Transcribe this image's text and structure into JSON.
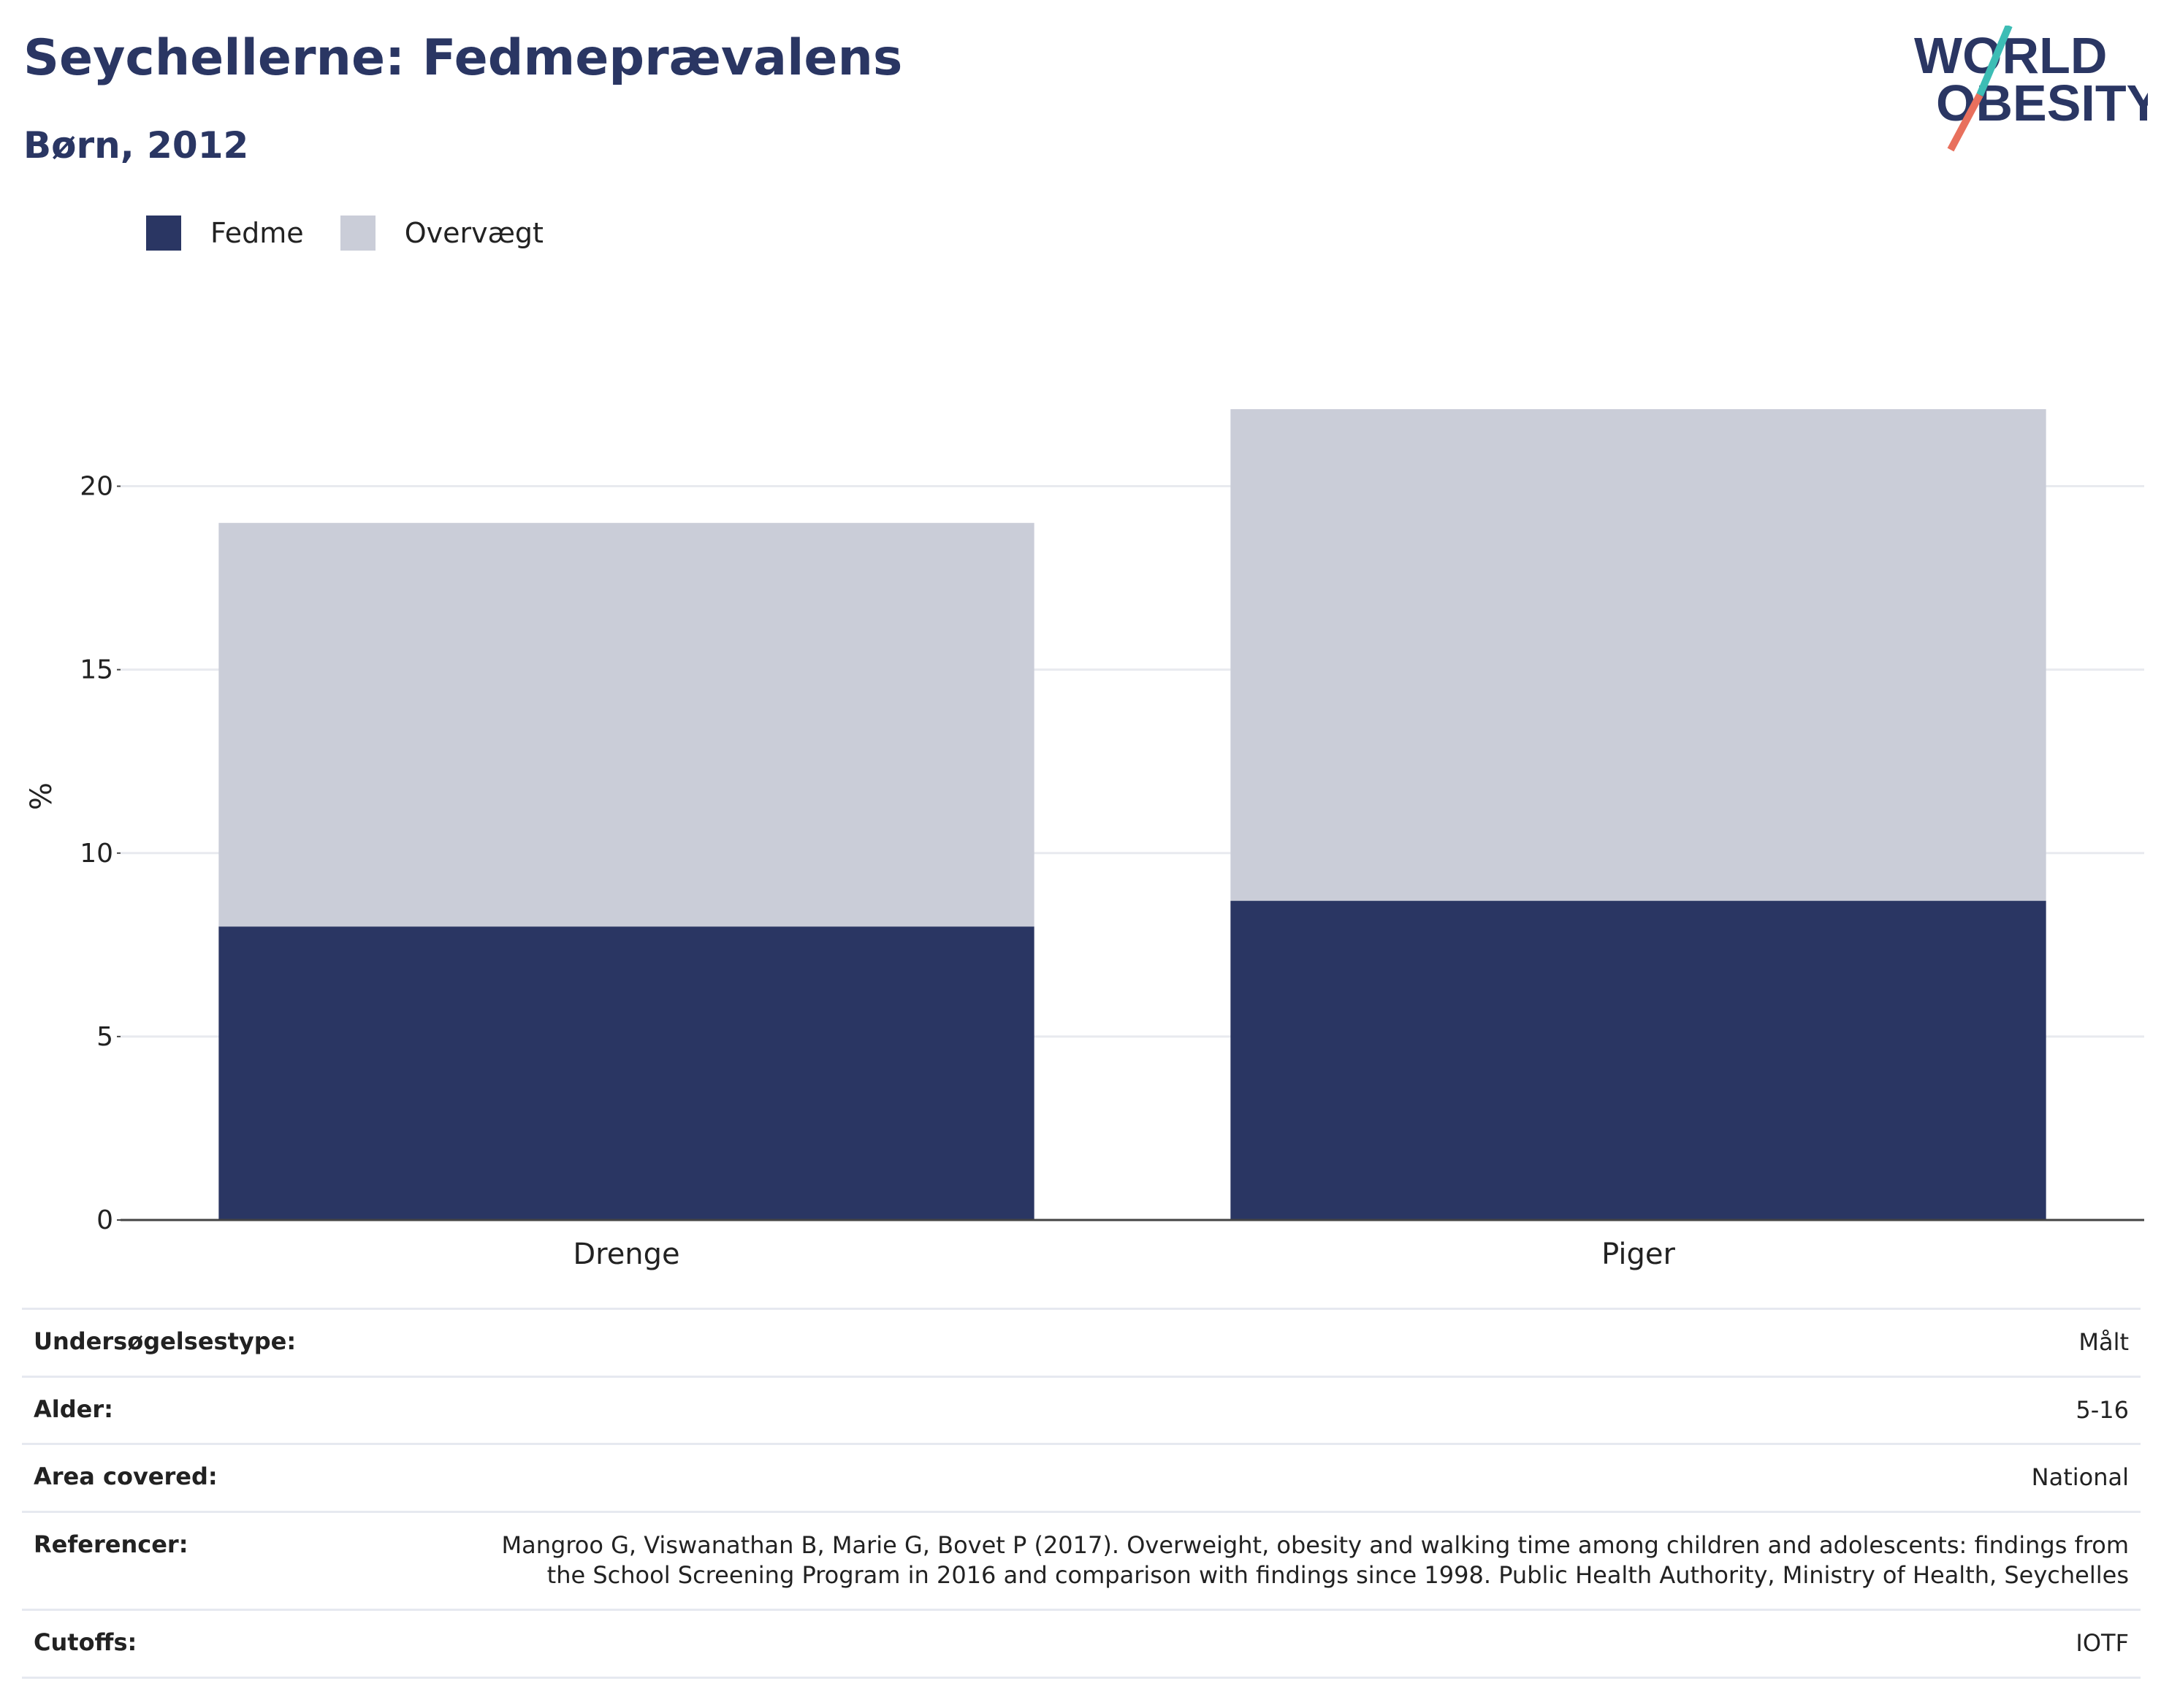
{
  "header": {
    "title": "Seychellerne: Fedmeprævalens",
    "subtitle": "Børn, 2012"
  },
  "logo": {
    "line1": "WORLD",
    "line2": "OBESITY",
    "name": "world-obesity-logo"
  },
  "legend": [
    {
      "label": "Fedme",
      "color": "#2a3663"
    },
    {
      "label": "Overvægt",
      "color": "#cacdd8"
    }
  ],
  "chart_data": {
    "type": "bar",
    "stacked": true,
    "categories": [
      "Drenge",
      "Piger"
    ],
    "series": [
      {
        "name": "Fedme",
        "values": [
          8.0,
          8.7
        ],
        "color": "#2a3663"
      },
      {
        "name": "Overvægt",
        "values": [
          11.0,
          13.4
        ],
        "color": "#cacdd8"
      }
    ],
    "ylabel": "%",
    "ylim": [
      0,
      22.5
    ],
    "yticks": [
      0,
      5,
      10,
      15,
      20
    ],
    "grid": true
  },
  "info": [
    {
      "key": "Undersøgelsestype:",
      "value": "Målt"
    },
    {
      "key": "Alder:",
      "value": "5-16"
    },
    {
      "key": "Area covered:",
      "value": "National"
    },
    {
      "key": "Referencer:",
      "value": "Mangroo G, Viswanathan B, Marie G, Bovet P (2017). Overweight, obesity and walking time among children and adolescents: findings from the School Screening Program in 2016 and comparison with findings since 1998. Public Health Authority, Ministry of Health, Seychelles"
    },
    {
      "key": "Cutoffs:",
      "value": "IOTF"
    }
  ]
}
